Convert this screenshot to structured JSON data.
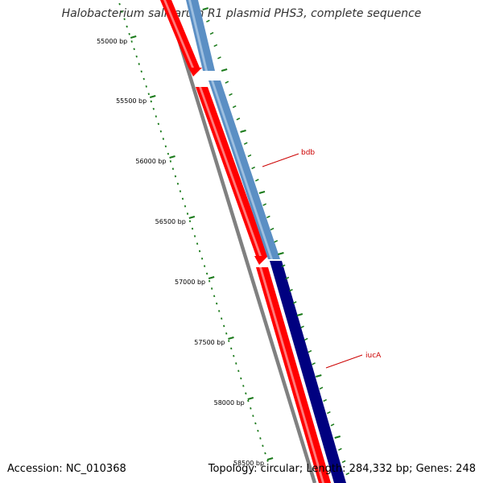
{
  "title": "Halobacterium salinarum R1 plasmid PHS3, complete sequence",
  "footer": {
    "accession": "Accession: NC_010368",
    "summary": "Topology: circular; Length: 284,332 bp; Genes: 248"
  },
  "colors": {
    "backbone": "#808080",
    "red_track": "#ff0000",
    "blue_light": "#5b8fc4",
    "blue_dark": "#000080",
    "ticks": "#1a7a1a",
    "label_line": "#cc0000"
  },
  "scale_ticks": [
    {
      "label": "55000 bp"
    },
    {
      "label": "55500 bp"
    },
    {
      "label": "56000 bp"
    },
    {
      "label": "56500 bp"
    },
    {
      "label": "57000 bp"
    },
    {
      "label": "57500 bp"
    },
    {
      "label": "58000 bp"
    },
    {
      "label": "58500 bp"
    }
  ],
  "genes": [
    {
      "name": "bdb"
    },
    {
      "name": "iucA"
    }
  ]
}
